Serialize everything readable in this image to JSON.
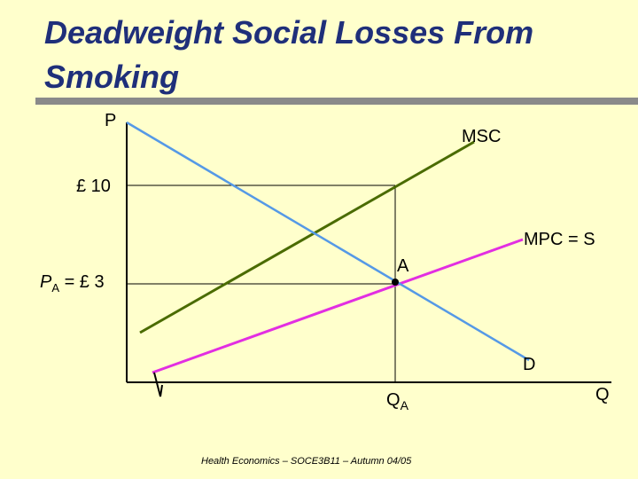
{
  "slide": {
    "title": "Deadweight Social Losses From Smoking",
    "footer": "Health Economics – SOCE3B11 – Autumn 04/05"
  },
  "axes": {
    "y_label": "P",
    "x_label": "Q"
  },
  "labels": {
    "msc": "MSC",
    "mpc": "MPC = S",
    "d": "D",
    "point_a": "A",
    "price_10": "£ 10",
    "pa_main": "P",
    "pa_sub": "A",
    "pa_rest": " = £ 3",
    "qa_main": "Q",
    "qa_sub": "A"
  },
  "colors": {
    "msc": "#4a6b00",
    "mpc": "#e22ee2",
    "d": "#5599e6",
    "axis": "#000000"
  }
}
